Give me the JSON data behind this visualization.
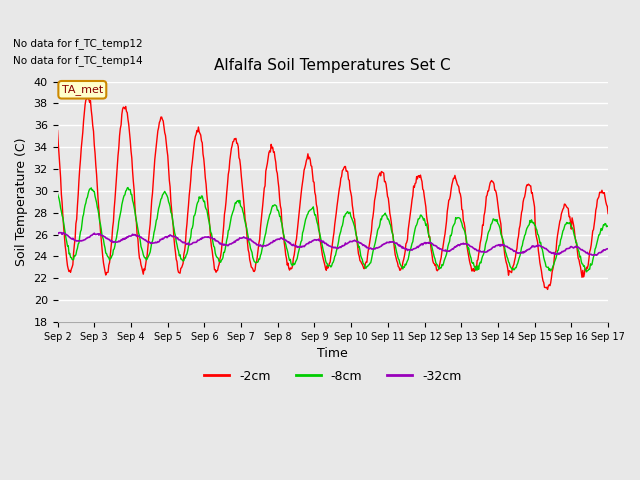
{
  "title": "Alfalfa Soil Temperatures Set C",
  "xlabel": "Time",
  "ylabel": "Soil Temperature (C)",
  "ylim": [
    18,
    40
  ],
  "yticks": [
    18,
    20,
    22,
    24,
    26,
    28,
    30,
    32,
    34,
    36,
    38,
    40
  ],
  "bg_color": "#e8e8e8",
  "plot_bg_color": "#e8e8e8",
  "no_data_text": [
    "No data for f_TC_temp12",
    "No data for f_TC_temp14"
  ],
  "ta_met_label": "TA_met",
  "legend_entries": [
    "-2cm",
    "-8cm",
    "-32cm"
  ],
  "legend_colors": [
    "#ff0000",
    "#00cc00",
    "#9900bb"
  ],
  "x_tick_labels": [
    "Sep 2",
    "Sep 3",
    "Sep 4",
    "Sep 5",
    "Sep 6",
    "Sep 7",
    "Sep 8",
    "Sep 9",
    "Sep 10",
    "Sep 11",
    "Sep 12",
    "Sep 13",
    "Sep 14",
    "Sep 15",
    "Sep 16",
    "Sep 17"
  ],
  "num_days": 15,
  "color_2cm": "#ff0000",
  "color_8cm": "#00cc00",
  "color_32cm": "#9900bb",
  "grid_color": "#ffffff",
  "figsize": [
    6.4,
    4.8
  ],
  "dpi": 100
}
